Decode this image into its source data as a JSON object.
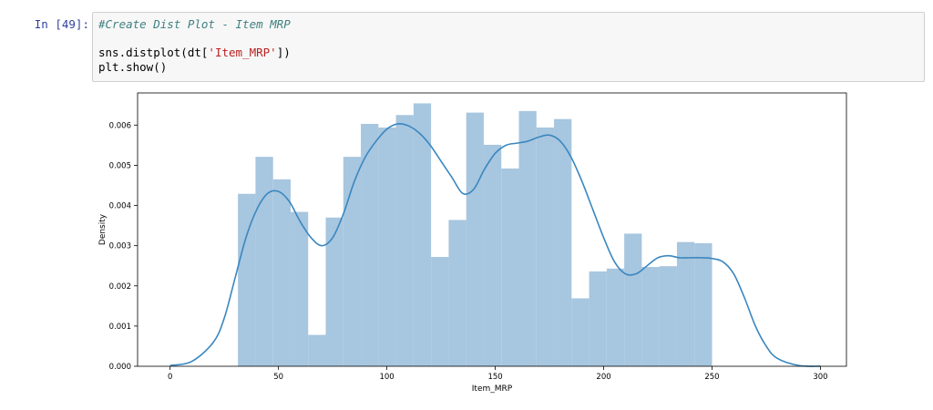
{
  "cell": {
    "prompt": "In [49]:",
    "code": {
      "comment": "#Create Dist Plot - Item MRP",
      "line2_prefix": "sns.distplot(dt[",
      "line2_string": "'Item_MRP'",
      "line2_suffix": "])",
      "line3": "plt.show()"
    }
  },
  "colors": {
    "prompt": "#303f9f",
    "comment": "#408080",
    "string": "#ba2121",
    "bar_fill": "#a7c6df",
    "kde_line": "#3a87c0",
    "axis": "#000000"
  },
  "chart_data": {
    "type": "bar",
    "subtype": "histogram_with_kde",
    "xlabel": "Item_MRP",
    "ylabel": "Density",
    "xlim": [
      -15,
      312
    ],
    "ylim": [
      0,
      0.0068
    ],
    "xticks": [
      "0",
      "50",
      "100",
      "150",
      "200",
      "250",
      "300"
    ],
    "yticks": [
      "0.000",
      "0.001",
      "0.002",
      "0.003",
      "0.004",
      "0.005",
      "0.006"
    ],
    "grid": false,
    "legend": "none",
    "bins": {
      "start": 31.3,
      "width": 8.1,
      "values": [
        0.00429,
        0.00521,
        0.00465,
        0.00384,
        0.00078,
        0.0037,
        0.00521,
        0.00603,
        0.00594,
        0.00625,
        0.00654,
        0.00272,
        0.00364,
        0.00631,
        0.00551,
        0.00492,
        0.00635,
        0.00594,
        0.00615,
        0.00169,
        0.00236,
        0.00243,
        0.0033,
        0.00247,
        0.00249,
        0.00309,
        0.00306
      ]
    },
    "kde": {
      "x": [
        0,
        10,
        20,
        25,
        30,
        35,
        40,
        45,
        50,
        55,
        60,
        65,
        70,
        75,
        80,
        85,
        90,
        95,
        100,
        105,
        110,
        115,
        120,
        125,
        130,
        135,
        140,
        145,
        150,
        155,
        160,
        165,
        170,
        175,
        180,
        185,
        190,
        195,
        200,
        205,
        210,
        215,
        220,
        225,
        230,
        235,
        240,
        245,
        250,
        255,
        260,
        265,
        270,
        275,
        280,
        290,
        300
      ],
      "y": [
        2e-05,
        0.00012,
        0.0006,
        0.0012,
        0.0022,
        0.0032,
        0.0039,
        0.0043,
        0.00435,
        0.0041,
        0.0036,
        0.0032,
        0.003,
        0.0032,
        0.0038,
        0.0046,
        0.0052,
        0.0056,
        0.0059,
        0.00603,
        0.00598,
        0.0058,
        0.0055,
        0.0051,
        0.0047,
        0.0043,
        0.0044,
        0.0049,
        0.0053,
        0.0055,
        0.00555,
        0.0056,
        0.0057,
        0.00575,
        0.0056,
        0.0052,
        0.0046,
        0.0039,
        0.0032,
        0.0026,
        0.0023,
        0.0023,
        0.0025,
        0.0027,
        0.00275,
        0.0027,
        0.0027,
        0.0027,
        0.00268,
        0.0026,
        0.0023,
        0.0017,
        0.001,
        0.0005,
        0.0002,
        2e-05,
        0.0
      ]
    }
  }
}
